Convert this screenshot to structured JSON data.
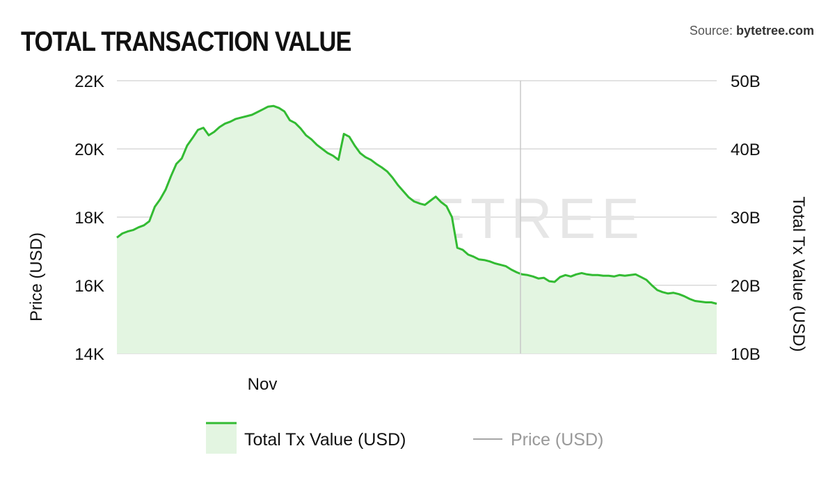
{
  "header": {
    "title": "TOTAL TRANSACTION VALUE",
    "source_prefix": "Source: ",
    "source_name": "bytetree.com"
  },
  "watermark": "BYTETREE",
  "colors": {
    "series": "#33bb33",
    "fill": "#e3f5e1",
    "grid": "#d9d9d9",
    "price_line": "#888888"
  },
  "chart_data": {
    "type": "area",
    "title": "TOTAL TRANSACTION VALUE",
    "x_tick_labels": [
      "Nov"
    ],
    "y_left": {
      "label": "Price (USD)",
      "ticks": [
        "14K",
        "16K",
        "18K",
        "20K",
        "22K"
      ],
      "range": [
        14000,
        22000
      ]
    },
    "y_right": {
      "label": "Total Tx Value (USD)",
      "ticks": [
        "10B",
        "20B",
        "30B",
        "40B",
        "50B"
      ],
      "range": [
        10,
        50
      ]
    },
    "grid": true,
    "legend_position": "bottom",
    "series": [
      {
        "name": "Total Tx Value (USD)",
        "axis": "right",
        "values": [
          27.0,
          27.6,
          27.9,
          28.1,
          28.5,
          28.8,
          29.4,
          31.5,
          32.6,
          34.0,
          36.0,
          37.8,
          38.6,
          40.5,
          41.6,
          42.8,
          43.1,
          42.0,
          42.5,
          43.2,
          43.7,
          44.0,
          44.4,
          44.6,
          44.8,
          45.0,
          45.4,
          45.8,
          46.2,
          46.3,
          46.0,
          45.5,
          44.2,
          43.8,
          43.0,
          42.0,
          41.4,
          40.6,
          40.0,
          39.4,
          39.0,
          38.4,
          42.2,
          41.8,
          40.5,
          39.4,
          38.8,
          38.4,
          37.8,
          37.3,
          36.7,
          35.8,
          34.7,
          33.8,
          32.9,
          32.3,
          32.0,
          31.8,
          32.4,
          33.0,
          32.2,
          31.6,
          30.0,
          25.5,
          25.2,
          24.5,
          24.2,
          23.8,
          23.7,
          23.5,
          23.2,
          23.0,
          22.8,
          22.3,
          21.9,
          21.6,
          21.5,
          21.3,
          21.0,
          21.1,
          20.6,
          20.5,
          21.2,
          21.5,
          21.3,
          21.6,
          21.8,
          21.6,
          21.5,
          21.5,
          21.4,
          21.4,
          21.3,
          21.5,
          21.4,
          21.5,
          21.6,
          21.2,
          20.8,
          20.0,
          19.3,
          19.0,
          18.8,
          18.9,
          18.7,
          18.4,
          18.0,
          17.7,
          17.6,
          17.5,
          17.5,
          17.3
        ]
      },
      {
        "name": "Price (USD)",
        "axis": "left",
        "values": []
      }
    ]
  },
  "legend": {
    "items": [
      {
        "label": "Total Tx Value (USD)"
      },
      {
        "label": "Price (USD)"
      }
    ]
  }
}
